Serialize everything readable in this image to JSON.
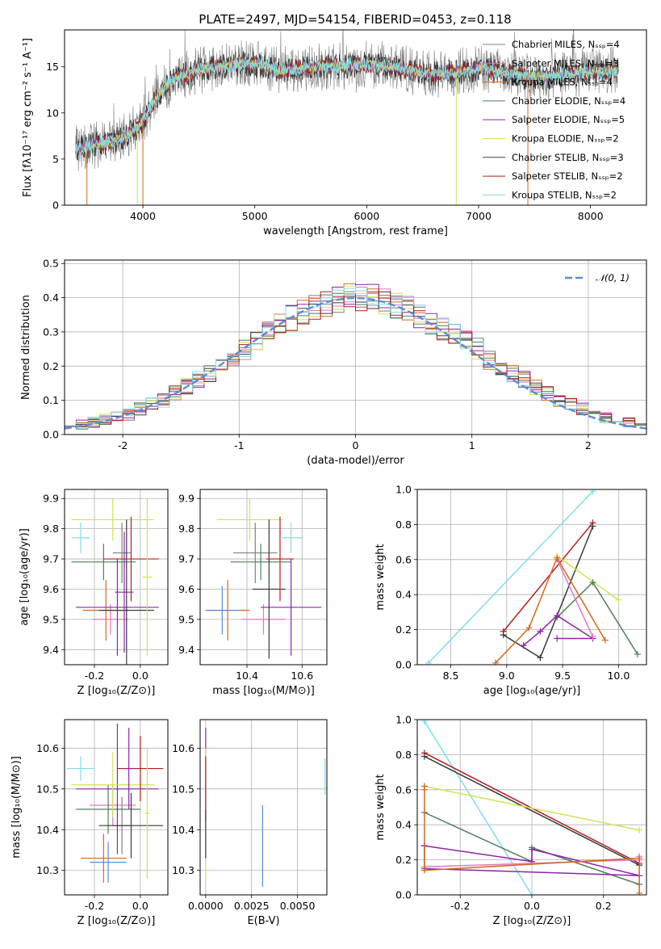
{
  "title": "PLATE=2497, MJD=54154, FIBERID=0453, z=0.118",
  "colors": {
    "chabrier_miles": "#7f7f7f",
    "salpeter_miles": "#e377c2",
    "kroupa_miles": "#d2691e",
    "chabrier_elodie": "#4f7f5a",
    "salpeter_elodie": "#8e24aa",
    "kroupa_elodie": "#d4e157",
    "chabrier_stelib": "#3a3a3a",
    "salpeter_stelib": "#b71c1c",
    "kroupa_stelib": "#80deea",
    "gaussian": "#5b8ad6"
  },
  "chart_data": [
    {
      "id": "spectrum",
      "type": "line",
      "xlabel": "wavelength [Angstrom, rest frame]",
      "ylabel": "Flux [fλ10⁻¹⁷ erg cm⁻² s⁻¹ A⁻¹]",
      "xlim": [
        3300,
        8500
      ],
      "ylim": [
        0,
        19
      ],
      "xticks": [
        4000,
        5000,
        6000,
        7000,
        8000
      ],
      "yticks": [
        0,
        5,
        10,
        15
      ],
      "grid": false,
      "legend_position": "upper-right",
      "spectrum_anchor": {
        "x": [
          3400,
          3500,
          3700,
          3850,
          3950,
          4050,
          4150,
          4300,
          4500,
          4700,
          4900,
          5100,
          5200,
          5400,
          5600,
          5800,
          6000,
          6200,
          6400,
          6600,
          6800,
          7000,
          7200,
          7400,
          7600,
          7800,
          8000,
          8200
        ],
        "y": [
          6.2,
          6.4,
          6.8,
          7.5,
          8.5,
          10.2,
          12.2,
          13.8,
          14.6,
          15.0,
          15.4,
          15.2,
          14.6,
          14.8,
          15.0,
          15.1,
          15.3,
          15.0,
          14.6,
          14.2,
          14.4,
          14.8,
          14.5,
          14.0,
          13.9,
          14.2,
          14.5,
          14.6
        ]
      },
      "series": [
        {
          "name": "Chabrier MILES, Nₛₛₚ=4",
          "color_key": "chabrier_miles"
        },
        {
          "name": "Salpeter MILES, Nₛₛₚ=3",
          "color_key": "salpeter_miles"
        },
        {
          "name": "Kroupa MILES, Nₛₛₚ=4",
          "color_key": "kroupa_miles"
        },
        {
          "name": "Chabrier ELODIE, Nₛₛₚ=4",
          "color_key": "chabrier_elodie"
        },
        {
          "name": "Salpeter ELODIE, Nₛₛₚ=5",
          "color_key": "salpeter_elodie"
        },
        {
          "name": "Kroupa ELODIE, Nₛₛₚ=2",
          "color_key": "kroupa_elodie"
        },
        {
          "name": "Chabrier STELIB, Nₛₛₚ=3",
          "color_key": "chabrier_stelib"
        },
        {
          "name": "Salpeter STELIB, Nₛₛₚ=2",
          "color_key": "salpeter_stelib"
        },
        {
          "name": "Kroupa STELIB, Nₛₛₚ=2",
          "color_key": "kroupa_stelib"
        }
      ]
    },
    {
      "id": "residuals",
      "type": "line",
      "xlabel": "(data-model)/error",
      "ylabel": "Normed distribution",
      "xlim": [
        -2.5,
        2.5
      ],
      "ylim": [
        0,
        0.51
      ],
      "xticks": [
        -2,
        -1,
        0,
        1,
        2
      ],
      "yticks": [
        0.0,
        0.1,
        0.2,
        0.3,
        0.4,
        0.5
      ],
      "grid": true,
      "legend_position": "upper-right",
      "gaussian_label": "𝒩(0, 1)",
      "bin_width": 0.1,
      "histogram_baseline": [
        0.025,
        0.03,
        0.035,
        0.045,
        0.05,
        0.06,
        0.075,
        0.09,
        0.1,
        0.12,
        0.14,
        0.16,
        0.18,
        0.2,
        0.22,
        0.25,
        0.28,
        0.3,
        0.32,
        0.34,
        0.36,
        0.37,
        0.38,
        0.39,
        0.4,
        0.4,
        0.4,
        0.39,
        0.38,
        0.37,
        0.35,
        0.33,
        0.31,
        0.29,
        0.27,
        0.25,
        0.22,
        0.2,
        0.18,
        0.16,
        0.14,
        0.12,
        0.1,
        0.09,
        0.075,
        0.06,
        0.05,
        0.04,
        0.035,
        0.03
      ]
    },
    {
      "id": "age-vs-z",
      "type": "scatter",
      "xlabel": "Z [log₁₀(Z/Z⊙)]",
      "ylabel": "age  [log₁₀(age/yr)]",
      "xlim": [
        -0.33,
        0.12
      ],
      "ylim": [
        9.35,
        9.93
      ],
      "xticks": [
        -0.2,
        0.0
      ],
      "yticks": [
        9.4,
        9.5,
        9.6,
        9.7,
        9.8,
        9.9
      ],
      "grid": true,
      "points": [
        {
          "color_key": "chabrier_miles",
          "x": -0.08,
          "xerr": 0.04,
          "y": 9.72,
          "yerr": 0.1
        },
        {
          "color_key": "salpeter_miles",
          "x": -0.13,
          "xerr": 0.08,
          "y": 9.5,
          "yerr": 0.05
        },
        {
          "color_key": "kroupa_miles",
          "x": -0.15,
          "xerr": 0.1,
          "y": 9.53,
          "yerr": 0.1
        },
        {
          "color_key": "chabrier_elodie",
          "x": -0.16,
          "xerr": 0.14,
          "y": 9.69,
          "yerr": 0.06
        },
        {
          "color_key": "salpeter_elodie",
          "x": -0.1,
          "xerr": 0.18,
          "y": 9.54,
          "yerr": 0.16
        },
        {
          "color_key": "kroupa_elodie",
          "x": -0.12,
          "xerr": 0.18,
          "y": 9.83,
          "yerr": 0.07
        },
        {
          "color_key": "chabrier_stelib",
          "x": -0.06,
          "xerr": 0.12,
          "y": 9.53,
          "yerr": 0.3
        },
        {
          "color_key": "salpeter_stelib",
          "x": -0.04,
          "xerr": 0.12,
          "y": 9.7,
          "yerr": 0.14
        },
        {
          "color_key": "kroupa_stelib",
          "x": -0.26,
          "xerr": 0.04,
          "y": 9.77,
          "yerr": 0.05
        },
        {
          "color_key": "salpeter_elodie",
          "x": -0.07,
          "xerr": 0.04,
          "y": 9.59,
          "yerr": 0.2
        },
        {
          "color_key": "kroupa_elodie",
          "x": 0.03,
          "xerr": 0.02,
          "y": 9.64,
          "yerr": 0.26
        }
      ]
    },
    {
      "id": "age-vs-mass",
      "type": "scatter",
      "xlabel": "mass [log₁₀(M/M⊙)]",
      "ylabel": "",
      "xlim": [
        10.23,
        10.69
      ],
      "ylim": [
        9.35,
        9.93
      ],
      "xticks": [
        10.4,
        10.6
      ],
      "yticks": [
        9.4,
        9.5,
        9.6,
        9.7,
        9.8,
        9.9
      ],
      "grid": true,
      "points": [
        {
          "color_key": "chabrier_miles",
          "x": 10.43,
          "xerr": 0.08,
          "y": 9.72,
          "yerr": 0.1
        },
        {
          "color_key": "salpeter_miles",
          "x": 10.46,
          "xerr": 0.08,
          "y": 9.5,
          "yerr": 0.05
        },
        {
          "color_key": "kroupa_miles",
          "x": 10.33,
          "xerr": 0.08,
          "y": 9.53,
          "yerr": 0.1
        },
        {
          "color_key": "chabrier_elodie",
          "x": 10.45,
          "xerr": 0.11,
          "y": 9.69,
          "yerr": 0.06
        },
        {
          "color_key": "salpeter_elodie",
          "x": 10.56,
          "xerr": 0.11,
          "y": 9.54,
          "yerr": 0.16
        },
        {
          "color_key": "kroupa_elodie",
          "x": 10.41,
          "xerr": 0.12,
          "y": 9.83,
          "yerr": 0.07
        },
        {
          "color_key": "chabrier_stelib",
          "x": 10.48,
          "xerr": 0.06,
          "y": 9.6,
          "yerr": 0.23
        },
        {
          "color_key": "salpeter_stelib",
          "x": 10.52,
          "xerr": 0.05,
          "y": 9.7,
          "yerr": 0.14
        },
        {
          "color_key": "kroupa_stelib",
          "x": 10.56,
          "xerr": 0.04,
          "y": 9.77,
          "yerr": 0.05
        },
        {
          "color_key": "gaussian",
          "x": 10.31,
          "xerr": 0.06,
          "y": 9.53,
          "yerr": 0.08
        }
      ]
    },
    {
      "id": "weight-vs-age",
      "type": "line",
      "xlabel": "age  [log₁₀(age/yr)]",
      "ylabel": "mass weight",
      "xlim": [
        8.2,
        10.25
      ],
      "ylim": [
        0,
        1
      ],
      "xticks": [
        8.5,
        9.0,
        9.5,
        10.0
      ],
      "yticks": [
        0.0,
        0.2,
        0.4,
        0.6,
        0.8,
        1.0
      ],
      "grid": true,
      "series": [
        {
          "color_key": "kroupa_stelib",
          "x": [
            8.3,
            9.77
          ],
          "y": [
            0.01,
            0.99
          ]
        },
        {
          "color_key": "salpeter_stelib",
          "x": [
            8.97,
            9.77
          ],
          "y": [
            0.19,
            0.81
          ]
        },
        {
          "color_key": "chabrier_stelib",
          "x": [
            8.97,
            9.3,
            9.77
          ],
          "y": [
            0.17,
            0.04,
            0.79
          ]
        },
        {
          "color_key": "kroupa_elodie",
          "x": [
            9.45,
            10.0
          ],
          "y": [
            0.62,
            0.37
          ]
        },
        {
          "color_key": "chabrier_elodie",
          "x": [
            9.45,
            9.77,
            10.17
          ],
          "y": [
            0.27,
            0.47,
            0.06
          ]
        },
        {
          "color_key": "salpeter_elodie",
          "x": [
            9.15,
            9.3,
            9.45,
            9.77,
            9.45
          ],
          "y": [
            0.11,
            0.19,
            0.28,
            0.15,
            0.15
          ]
        },
        {
          "color_key": "salpeter_miles",
          "x": [
            9.45,
            9.77
          ],
          "y": [
            0.6,
            0.16
          ]
        },
        {
          "color_key": "kroupa_miles",
          "x": [
            8.9,
            9.2,
            9.45,
            9.88
          ],
          "y": [
            0.01,
            0.21,
            0.61,
            0.14
          ]
        }
      ]
    },
    {
      "id": "mass-vs-z",
      "type": "scatter",
      "xlabel": "Z [log₁₀(Z/Z⊙)]",
      "ylabel": "mass [log₁₀(M/M⊙)]",
      "xlim": [
        -0.33,
        0.12
      ],
      "ylim": [
        10.24,
        10.67
      ],
      "xticks": [
        -0.2,
        0.0
      ],
      "yticks": [
        10.3,
        10.4,
        10.5,
        10.6
      ],
      "grid": true,
      "points": [
        {
          "color_key": "chabrier_miles",
          "x": -0.08,
          "xerr": 0.04,
          "y": 10.41,
          "yerr": 0.07
        },
        {
          "color_key": "salpeter_miles",
          "x": -0.12,
          "xerr": 0.1,
          "y": 10.46,
          "yerr": 0.05
        },
        {
          "color_key": "kroupa_miles",
          "x": -0.16,
          "xerr": 0.1,
          "y": 10.33,
          "yerr": 0.06
        },
        {
          "color_key": "chabrier_elodie",
          "x": -0.14,
          "xerr": 0.14,
          "y": 10.45,
          "yerr": 0.06
        },
        {
          "color_key": "salpeter_elodie",
          "x": -0.1,
          "xerr": 0.18,
          "y": 10.5,
          "yerr": 0.16
        },
        {
          "color_key": "kroupa_elodie",
          "x": -0.12,
          "xerr": 0.18,
          "y": 10.51,
          "yerr": 0.08
        },
        {
          "color_key": "chabrier_stelib",
          "x": -0.04,
          "xerr": 0.14,
          "y": 10.41,
          "yerr": 0.08
        },
        {
          "color_key": "salpeter_stelib",
          "x": 0.0,
          "xerr": 0.1,
          "y": 10.55,
          "yerr": 0.08
        },
        {
          "color_key": "kroupa_stelib",
          "x": -0.26,
          "xerr": 0.06,
          "y": 10.55,
          "yerr": 0.03
        },
        {
          "color_key": "gaussian",
          "x": -0.14,
          "xerr": 0.08,
          "y": 10.32,
          "yerr": 0.05
        },
        {
          "color_key": "salpeter_elodie",
          "x": -0.05,
          "xerr": 0.02,
          "y": 10.55,
          "yerr": 0.1
        },
        {
          "color_key": "kroupa_elodie",
          "x": 0.03,
          "xerr": 0.01,
          "y": 10.44,
          "yerr": 0.16
        }
      ]
    },
    {
      "id": "mass-vs-ebv",
      "type": "scatter",
      "xlabel": "E(B-V)",
      "ylabel": "",
      "xlim": [
        -0.0003,
        0.0066
      ],
      "ylim": [
        10.24,
        10.67
      ],
      "xticks": [
        0.0,
        0.0025,
        0.005
      ],
      "xtick_labels": [
        "0.0000",
        "0.0025",
        "0.0050"
      ],
      "yticks": [
        10.3,
        10.4,
        10.5,
        10.6
      ],
      "grid": true,
      "points": [
        {
          "color_key": "salpeter_elodie",
          "x": 0.0,
          "xerr": 0,
          "y": 10.55,
          "yerr": 0.1
        },
        {
          "color_key": "kroupa_elodie",
          "x": 0.0,
          "xerr": 0,
          "y": 10.44,
          "yerr": 0.16
        },
        {
          "color_key": "salpeter_stelib",
          "x": 0.0,
          "xerr": 0,
          "y": 10.5,
          "yerr": 0.08
        },
        {
          "color_key": "chabrier_stelib",
          "x": 0.0,
          "xerr": 0,
          "y": 10.39,
          "yerr": 0.06
        },
        {
          "color_key": "gaussian",
          "x": 0.0031,
          "xerr": 0,
          "y": 10.36,
          "yerr": 0.1
        },
        {
          "color_key": "kroupa_stelib",
          "x": 0.0065,
          "xerr": 0,
          "y": 10.53,
          "yerr": 0.045
        }
      ]
    },
    {
      "id": "weight-vs-z",
      "type": "line",
      "xlabel": "Z [log₁₀(Z/Z⊙)]",
      "ylabel": "mass weight",
      "xlim": [
        -0.32,
        0.32
      ],
      "ylim": [
        0,
        1
      ],
      "xticks": [
        -0.2,
        0.0,
        0.2
      ],
      "yticks": [
        0.0,
        0.2,
        0.4,
        0.6,
        0.8,
        1.0
      ],
      "grid": true,
      "series": [
        {
          "color_key": "kroupa_stelib",
          "x": [
            -0.3,
            0.0
          ],
          "y": [
            0.99,
            0.0
          ]
        },
        {
          "color_key": "salpeter_stelib",
          "x": [
            -0.3,
            0.3
          ],
          "y": [
            0.81,
            0.18
          ]
        },
        {
          "color_key": "chabrier_stelib",
          "x": [
            -0.3,
            0.3
          ],
          "y": [
            0.79,
            0.17
          ]
        },
        {
          "color_key": "kroupa_elodie",
          "x": [
            -0.3,
            0.3
          ],
          "y": [
            0.62,
            0.37
          ]
        },
        {
          "color_key": "chabrier_elodie",
          "x": [
            -0.3,
            0.0,
            0.0,
            0.3
          ],
          "y": [
            0.47,
            0.19,
            0.27,
            0.06
          ]
        },
        {
          "color_key": "salpeter_elodie",
          "x": [
            -0.3,
            0.0,
            0.0,
            0.3,
            -0.3,
            -0.3
          ],
          "y": [
            0.28,
            0.19,
            0.26,
            0.11,
            0.15,
            0.28
          ]
        },
        {
          "color_key": "salpeter_miles",
          "x": [
            -0.3,
            0.3,
            0.3
          ],
          "y": [
            0.16,
            0.2,
            0.22
          ]
        },
        {
          "color_key": "kroupa_miles",
          "x": [
            -0.3,
            -0.3,
            -0.3,
            0.3,
            0.3
          ],
          "y": [
            0.62,
            0.6,
            0.14,
            0.21,
            0.01
          ]
        }
      ]
    }
  ]
}
